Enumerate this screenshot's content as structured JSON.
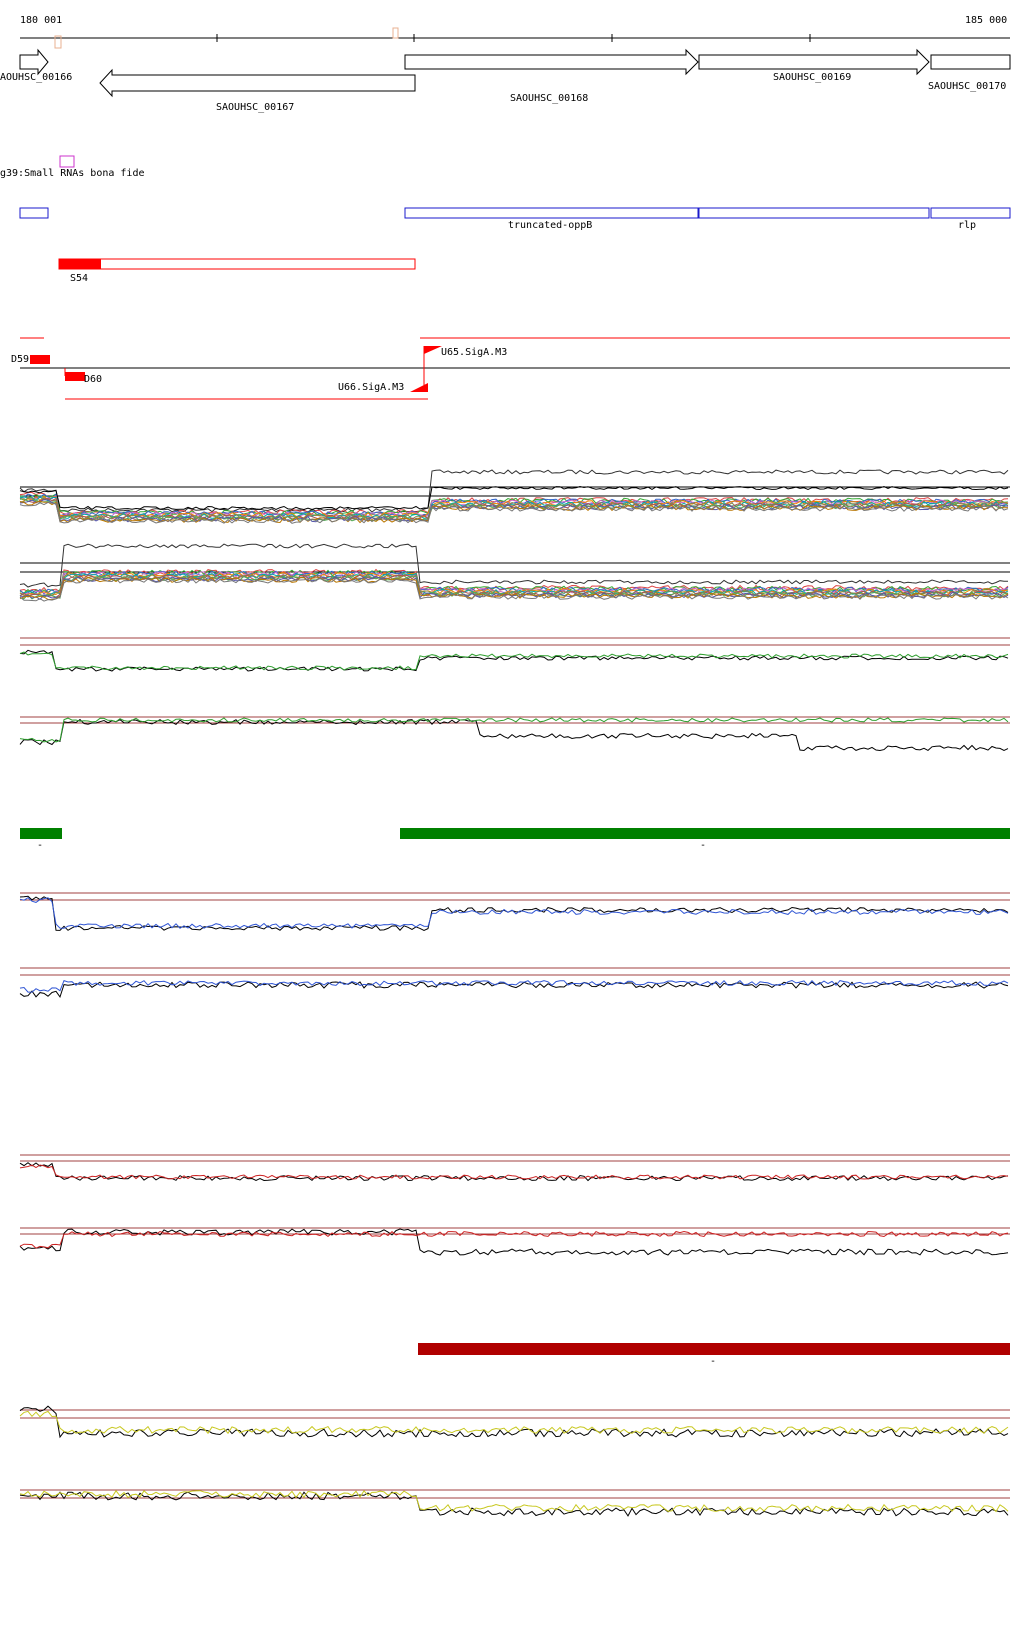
{
  "ruler": {
    "start_label": "180 001",
    "end_label": "185 000"
  },
  "genes": [
    {
      "id": "SAOUHSC_00166",
      "label": "AOUHSC_00166"
    },
    {
      "id": "SAOUHSC_00167",
      "label": "SAOUHSC_00167"
    },
    {
      "id": "SAOUHSC_00168",
      "label": "SAOUHSC_00168"
    },
    {
      "id": "SAOUHSC_00169",
      "label": "SAOUHSC_00169"
    },
    {
      "id": "SAOUHSC_00170",
      "label": "SAOUHSC_00170"
    }
  ],
  "srna_track": {
    "label": "g39:Small RNAs bona fide"
  },
  "operon_track": {
    "labels": [
      "truncated-oppB",
      "rlp"
    ]
  },
  "s_track": {
    "label": "S54"
  },
  "segments": {
    "d59": "D59",
    "d60": "D60",
    "u65": "U65.SigA.M3",
    "u66": "U66.SigA.M3"
  },
  "condition_marks": {
    "green": "-",
    "darkred": "-"
  },
  "colors": {
    "gene_stroke": "#000000",
    "srna_box": "#cc33cc",
    "operon_box": "#1a1acc",
    "s_feature": "#ff0000",
    "segment": "#ff0000",
    "green_bar": "#008000",
    "green_line": "#2e9e2e",
    "blue_line": "#2f55d4",
    "red_line": "#cc2222",
    "yellow_line": "#c8c820",
    "threshold_line": "#a04040",
    "darkred_bar": "#b00000"
  }
}
